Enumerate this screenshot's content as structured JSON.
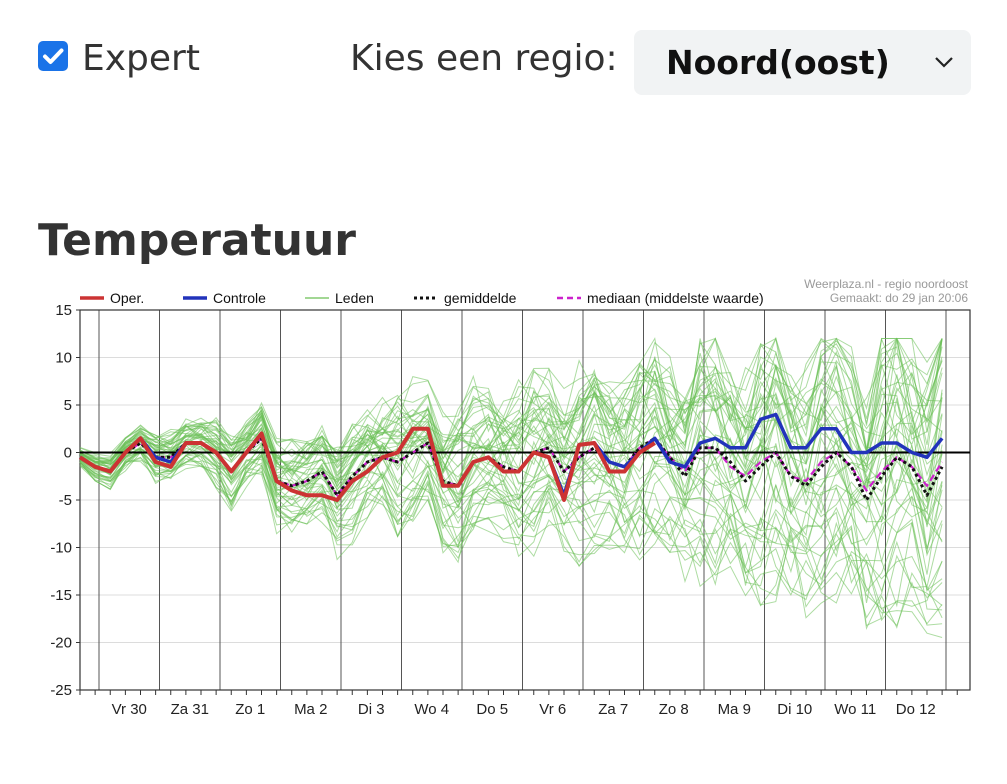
{
  "header": {
    "expert_checkbox": {
      "label": "Expert",
      "checked": true
    },
    "region_label": "Kies een regio:",
    "region_select": {
      "value": "Noord(oost)"
    }
  },
  "section": {
    "title": "Temperatuur"
  },
  "colors": {
    "accent": "#1a73e8",
    "oper": "#cc3333",
    "controle": "#2233bb",
    "leden": "#6abf55",
    "gemiddelde": "#111111",
    "mediaan": "#cc22cc"
  },
  "chart_data": {
    "type": "line",
    "title": "",
    "credit_line1": "Weerplaza.nl - regio noordoost",
    "credit_line2": "Gemaakt: do 29 jan 20:06",
    "ylim": [
      -25,
      15
    ],
    "yticks": [
      15,
      10,
      5,
      0,
      -5,
      -10,
      -15,
      -20,
      -25
    ],
    "day_labels": [
      "Vr 30",
      "Za 31",
      "Zo 1",
      "Ma 2",
      "Di 3",
      "Wo 4",
      "Do 5",
      "Vr 6",
      "Za 7",
      "Zo 8",
      "Ma 9",
      "Di 10",
      "Wo 11",
      "Do 12"
    ],
    "steps_per_day": 4,
    "grid": true,
    "legend_position": "top-left",
    "legend": [
      "Oper.",
      "Controle",
      "Leden",
      "gemiddelde",
      "mediaan (middelste waarde)"
    ],
    "series": [
      {
        "name": "Oper.",
        "values": [
          -0.5,
          -1.5,
          -2,
          0,
          1.5,
          -1,
          -1.5,
          1,
          1,
          0,
          -2,
          0,
          2,
          -3,
          -4,
          -4.5,
          -4.5,
          -5,
          -3,
          -2,
          -0.5,
          0,
          2.5,
          2.5,
          -3.5,
          -3.5,
          -1,
          -0.5,
          -2,
          -2,
          0,
          -0.5,
          -5,
          0.8,
          1,
          -2,
          -2,
          0,
          1
        ]
      },
      {
        "name": "Controle",
        "values": [
          -0.5,
          -1.5,
          -2,
          0,
          1.5,
          -0.5,
          -1,
          1,
          1,
          0,
          -2,
          0,
          2,
          -3,
          -4,
          -4.5,
          -4.5,
          -5,
          -3,
          -2,
          -0.5,
          0,
          2.5,
          2.5,
          -3.5,
          -3.5,
          -1,
          -0.5,
          -2,
          -2,
          0,
          -0.5,
          -4.5,
          0.8,
          1,
          -1,
          -1.5,
          0,
          1.5,
          -1,
          -1.5,
          1,
          1.5,
          0.5,
          0.5,
          3.5,
          4,
          0.5,
          0.5,
          2.5,
          2.5,
          0,
          0,
          1,
          1,
          0,
          -0.5,
          1.5
        ]
      },
      {
        "name": "gemiddelde",
        "values": [
          -0.5,
          -1.5,
          -2,
          0,
          1,
          -0.5,
          -0.5,
          1,
          1,
          0,
          -2,
          0,
          1.5,
          -3,
          -3.5,
          -3,
          -2,
          -4.5,
          -2.5,
          -1,
          -0.5,
          -1,
          0,
          1,
          -3,
          -3.5,
          -1,
          -0.5,
          -1.5,
          -2,
          0,
          0.5,
          -2,
          -0.5,
          0.5,
          -1,
          -1.5,
          0.5,
          1.5,
          -0.5,
          -2.5,
          0.5,
          0.5,
          -1,
          -3,
          -1.5,
          0,
          -2.5,
          -3.5,
          -1.5,
          0,
          -1.5,
          -5,
          -2.5,
          -0.5,
          -1.5,
          -4.5,
          -1.5
        ]
      },
      {
        "name": "mediaan (middelste waarde)",
        "values": [
          -0.5,
          -1.5,
          -2,
          0,
          1,
          -0.5,
          -0.5,
          1,
          1,
          0,
          -2,
          0,
          1.5,
          -3,
          -3.5,
          -3,
          -2,
          -4.5,
          -2.5,
          -1,
          -0.5,
          -1,
          0,
          1,
          -3,
          -3.5,
          -1,
          -0.5,
          -1.5,
          -2,
          0,
          0.5,
          -2,
          -0.5,
          0.5,
          -1,
          -1.5,
          0.5,
          1.5,
          -0.5,
          -2,
          0.5,
          0.5,
          -1.5,
          -2.5,
          -1,
          0,
          -2.5,
          -3,
          -1,
          0,
          -1.5,
          -4,
          -2,
          -0.5,
          -1.5,
          -3.5,
          -1
        ]
      }
    ]
  }
}
